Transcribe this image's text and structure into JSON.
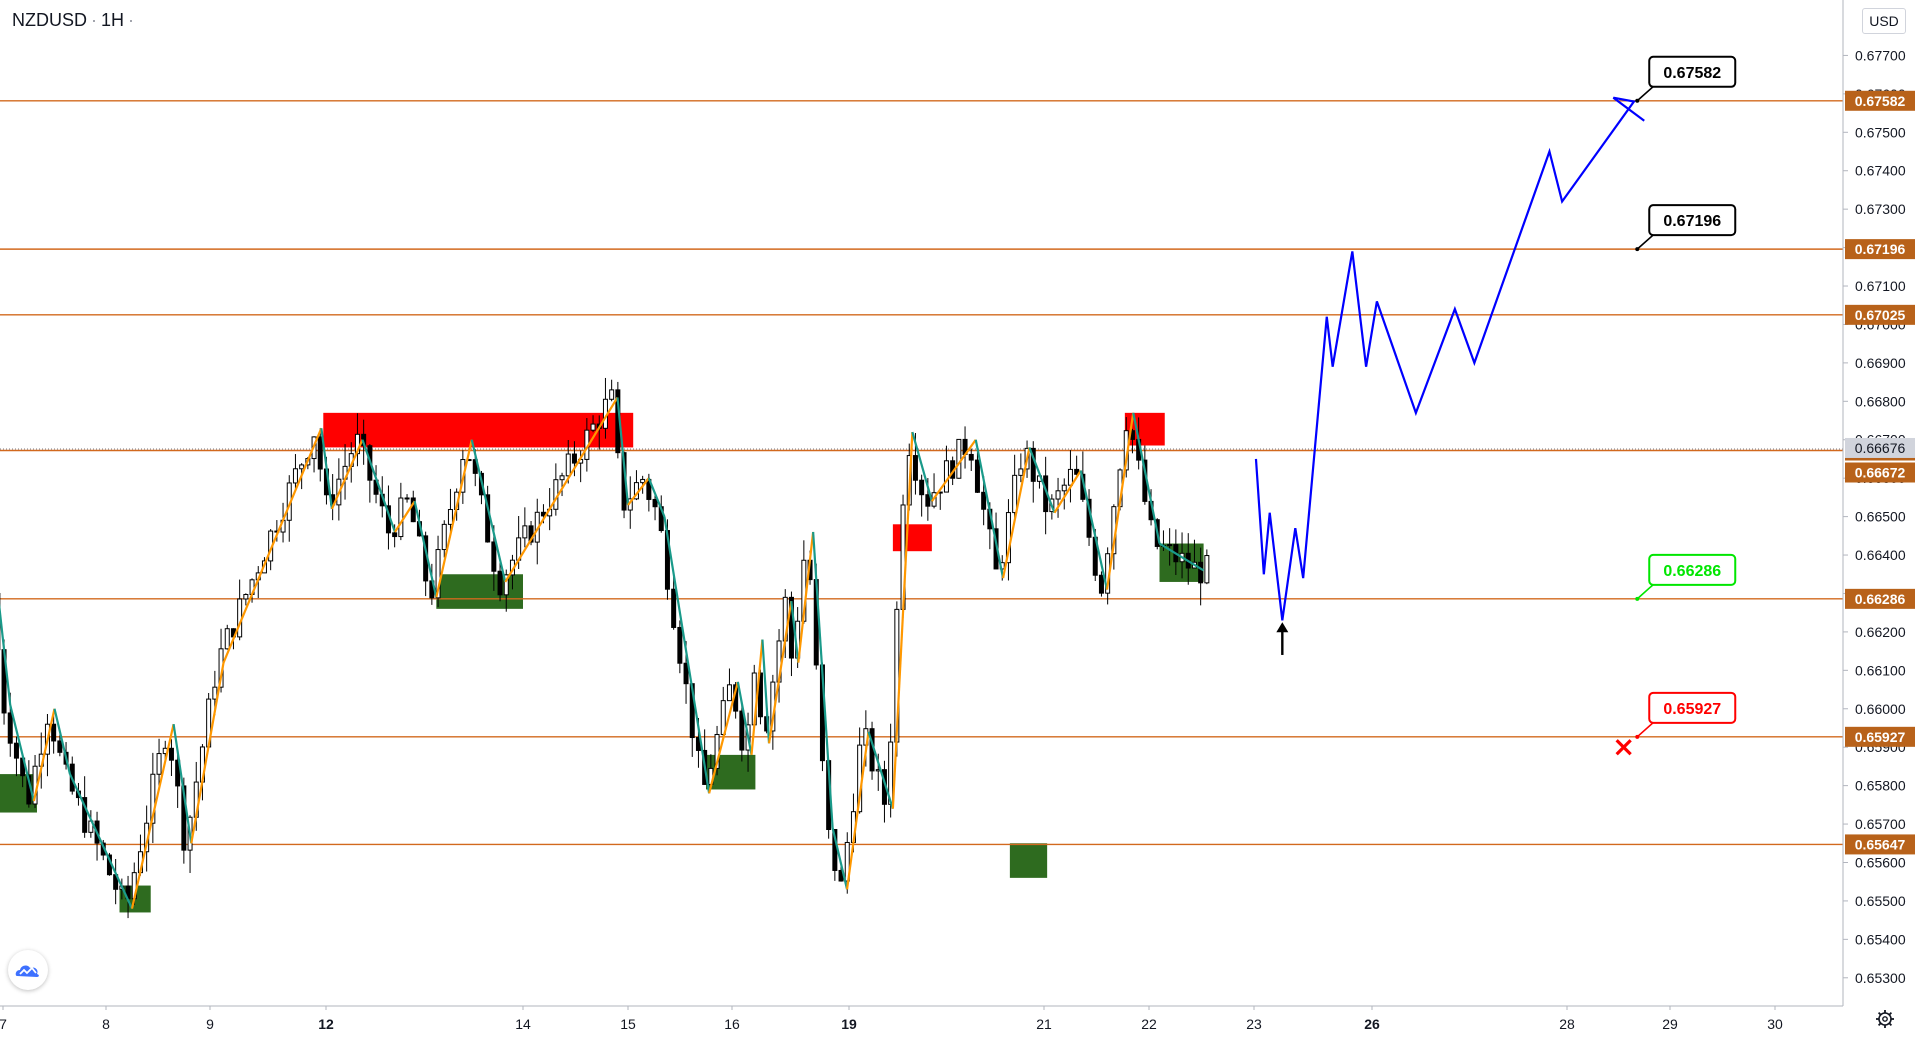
{
  "header": {
    "symbol": "NZDUSD",
    "interval": "1H"
  },
  "currency": "USD",
  "icons": {
    "logo": "tradingview-logo-icon",
    "settings": "gear-icon"
  },
  "colors": {
    "level_line": "#d2691e",
    "level_label_bg": "#b8621a",
    "current_price_bg": "#b8621a",
    "last_price_bg": "#d1d4dc",
    "up_swing": "#ff9800",
    "down_swing": "#1a9a8a",
    "supply_zone": "#ff0000",
    "demand_zone": "#2e6b1f",
    "projection": "#0000ff",
    "target_callout_border": "#000000",
    "entry_callout_border": "#00e600",
    "stop_callout_border": "#ff0000",
    "stop_marker": "#ff0000",
    "candle": "#000000"
  },
  "chart_data": {
    "type": "candlestick",
    "symbol": "NZDUSD",
    "ylim": [
      0.6525,
      0.678
    ],
    "y_ticks": [
      "0.67700",
      "0.67600",
      "0.67500",
      "0.67400",
      "0.67300",
      "0.67200",
      "0.67100",
      "0.67000",
      "0.66900",
      "0.66800",
      "0.66700",
      "0.66600",
      "0.66500",
      "0.66400",
      "0.66300",
      "0.66200",
      "0.66100",
      "0.66000",
      "0.65900",
      "0.65800",
      "0.65700",
      "0.65600",
      "0.65500",
      "0.65400",
      "0.65300"
    ],
    "x_ticks": [
      {
        "label": "7",
        "day": 7
      },
      {
        "label": "8",
        "day": 8
      },
      {
        "label": "9",
        "day": 9
      },
      {
        "label": "12",
        "day": 12,
        "bold": true
      },
      {
        "label": "14",
        "day": 14
      },
      {
        "label": "15",
        "day": 15
      },
      {
        "label": "16",
        "day": 16
      },
      {
        "label": "19",
        "day": 19,
        "bold": true
      },
      {
        "label": "21",
        "day": 21
      },
      {
        "label": "22",
        "day": 22
      },
      {
        "label": "23",
        "day": 23
      },
      {
        "label": "26",
        "day": 26,
        "bold": true
      },
      {
        "label": "28",
        "day": 28
      },
      {
        "label": "29",
        "day": 29
      },
      {
        "label": "30",
        "day": 30
      }
    ],
    "price_levels": [
      {
        "value": 0.67582,
        "label": "0.67582"
      },
      {
        "value": 0.67196,
        "label": "0.67196"
      },
      {
        "value": 0.67025,
        "label": "0.67025"
      },
      {
        "value": 0.66672,
        "label": "0.66672"
      },
      {
        "value": 0.66286,
        "label": "0.66286"
      },
      {
        "value": 0.65927,
        "label": "0.65927"
      },
      {
        "value": 0.65647,
        "label": "0.65647"
      }
    ],
    "last_price": {
      "value": 0.66676,
      "label": "0.66676"
    },
    "current_price": {
      "value": 0.66672,
      "label": "0.66672"
    },
    "callouts": [
      {
        "text": "0.67582",
        "kind": "target",
        "day": 28.75,
        "price": 0.67582
      },
      {
        "text": "0.67196",
        "kind": "target",
        "day": 28.75,
        "price": 0.67196
      },
      {
        "text": "0.66286",
        "kind": "entry",
        "day": 28.75,
        "price": 0.66286
      },
      {
        "text": "0.65927",
        "kind": "stop",
        "day": 28.75,
        "price": 0.65927
      }
    ],
    "supply_zones": [
      {
        "day_start": 11.93,
        "day_end": 15.05,
        "price_high": 0.6677,
        "price_low": 0.6668
      },
      {
        "day_start": 19.45,
        "day_end": 19.85,
        "price_high": 0.6648,
        "price_low": 0.6641
      },
      {
        "day_start": 21.77,
        "day_end": 22.15,
        "price_high": 0.6677,
        "price_low": 0.66685
      }
    ],
    "demand_zones": [
      {
        "day_start": 6.95,
        "day_end": 7.33,
        "price_high": 0.6583,
        "price_low": 0.6573
      },
      {
        "day_start": 8.13,
        "day_end": 8.43,
        "price_high": 0.6554,
        "price_low": 0.6547
      },
      {
        "day_start": 13.12,
        "day_end": 14.0,
        "price_high": 0.6635,
        "price_low": 0.6626
      },
      {
        "day_start": 15.75,
        "day_end": 16.6,
        "price_high": 0.6588,
        "price_low": 0.6579
      },
      {
        "day_start": 20.65,
        "day_end": 21.03,
        "price_high": 0.6565,
        "price_low": 0.6556
      },
      {
        "day_start": 22.1,
        "day_end": 22.52,
        "price_high": 0.6643,
        "price_low": 0.6633
      }
    ],
    "zigzag": [
      [
        6.95,
        0.663
      ],
      [
        7.07,
        0.6601
      ],
      [
        7.3,
        0.6576
      ],
      [
        7.5,
        0.66
      ],
      [
        7.65,
        0.6583
      ],
      [
        8.25,
        0.6548
      ],
      [
        8.65,
        0.6596
      ],
      [
        8.82,
        0.6565
      ],
      [
        9.35,
        0.6612
      ],
      [
        11.88,
        0.6673
      ],
      [
        12.06,
        0.6652
      ],
      [
        12.37,
        0.667
      ],
      [
        12.7,
        0.6646
      ],
      [
        12.9,
        0.6654
      ],
      [
        13.12,
        0.6629
      ],
      [
        13.48,
        0.667
      ],
      [
        13.82,
        0.6633
      ],
      [
        14.9,
        0.6681
      ],
      [
        15.0,
        0.6653
      ],
      [
        15.2,
        0.666
      ],
      [
        15.35,
        0.665
      ],
      [
        15.78,
        0.6578
      ],
      [
        16.15,
        0.6607
      ],
      [
        16.5,
        0.6588
      ],
      [
        16.78,
        0.6618
      ],
      [
        16.95,
        0.6591
      ],
      [
        17.52,
        0.6628
      ],
      [
        17.7,
        0.6612
      ],
      [
        18.08,
        0.6646
      ],
      [
        18.58,
        0.6569
      ],
      [
        18.95,
        0.6553
      ],
      [
        19.2,
        0.6594
      ],
      [
        19.45,
        0.6574
      ],
      [
        19.65,
        0.6672
      ],
      [
        19.85,
        0.6654
      ],
      [
        20.3,
        0.667
      ],
      [
        20.58,
        0.6634
      ],
      [
        20.85,
        0.6668
      ],
      [
        21.1,
        0.6651
      ],
      [
        21.35,
        0.6662
      ],
      [
        21.6,
        0.6631
      ],
      [
        21.85,
        0.6677
      ],
      [
        22.1,
        0.6643
      ],
      [
        22.52,
        0.6636
      ]
    ],
    "projection": [
      [
        23.05,
        0.6665
      ],
      [
        23.25,
        0.6635
      ],
      [
        23.4,
        0.6651
      ],
      [
        23.72,
        0.6623
      ],
      [
        24.05,
        0.6647
      ],
      [
        24.25,
        0.6634
      ],
      [
        24.85,
        0.6702
      ],
      [
        25.0,
        0.6689
      ],
      [
        25.5,
        0.6719
      ],
      [
        25.85,
        0.6689
      ],
      [
        26.05,
        0.6706
      ],
      [
        26.45,
        0.6677
      ],
      [
        26.85,
        0.6704
      ],
      [
        27.05,
        0.669
      ],
      [
        27.82,
        0.6745
      ],
      [
        27.95,
        0.6732
      ],
      [
        28.65,
        0.6758
      ],
      [
        28.45,
        0.6759
      ],
      [
        28.75,
        0.6753
      ]
    ],
    "entry_arrow": {
      "day": 23.72,
      "price_from": 0.6614,
      "price_to": 0.6622
    },
    "stop_marker": {
      "day": 28.55,
      "price": 0.659
    }
  }
}
